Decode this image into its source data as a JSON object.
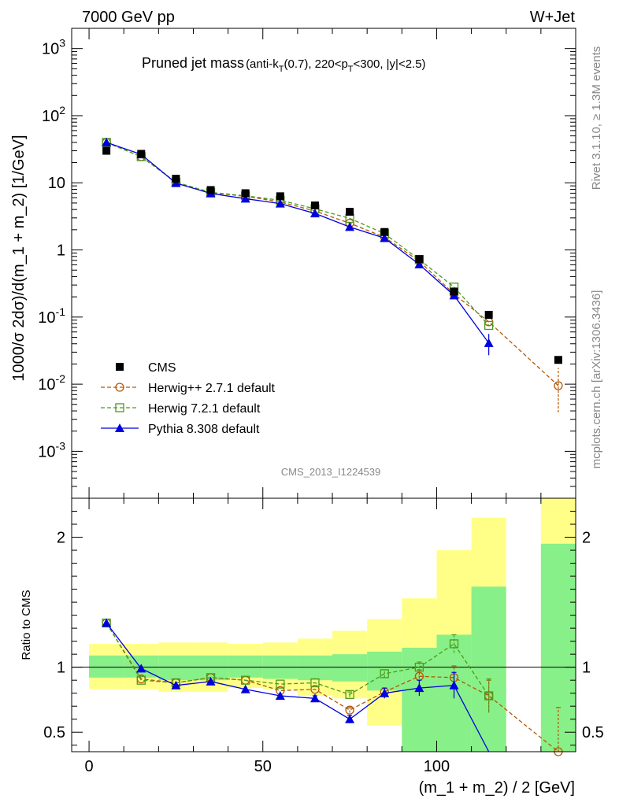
{
  "header": {
    "left": "7000 GeV pp",
    "right": "W+Jet"
  },
  "side_labels": {
    "rivet": "Rivet 3.1.10, ≥ 1.3M events",
    "mcplots": "mcplots.cern.ch [arXiv:1306.3436]"
  },
  "watermark": "CMS_2013_I1224539",
  "chart_data": [
    {
      "type": "scatter",
      "title_main": "Pruned jet mass",
      "title_sub": "(anti-k_T(0.7), 220<p_T<300, |y|<2.5)",
      "ylabel": "1000/σ 2dσ)/d(m_1 + m_2) [1/GeV]",
      "yscale": "log",
      "ylim": [
        0.0002,
        2000
      ],
      "xlim": [
        -5,
        140
      ],
      "y_tick_labels": [
        "10^-3",
        "10^-2",
        "10^-1",
        "1",
        "10",
        "10^2",
        "10^3"
      ],
      "legend_position": "lower-left",
      "x": [
        5,
        15,
        25,
        35,
        45,
        55,
        65,
        75,
        85,
        95,
        105,
        115,
        135
      ],
      "series": [
        {
          "name": "CMS",
          "color": "#000000",
          "marker": "square",
          "values": [
            30,
            27,
            11.5,
            7.8,
            7.0,
            6.3,
            4.6,
            3.7,
            1.85,
            0.73,
            0.24,
            0.108,
            0.023
          ]
        },
        {
          "name": "Herwig++ 2.7.1 default",
          "color": "#b35806",
          "marker": "open-circle",
          "linestyle": "dashed",
          "values": [
            40,
            24.5,
            10.2,
            7.1,
            6.3,
            5.2,
            3.8,
            2.5,
            1.55,
            0.68,
            0.22,
            0.085,
            0.0095
          ]
        },
        {
          "name": "Herwig 7.2.1 default",
          "color": "#4d9a1e",
          "marker": "open-square",
          "linestyle": "dashed",
          "values": [
            40,
            24.5,
            10.2,
            7.2,
            6.4,
            5.5,
            4.1,
            2.95,
            1.75,
            0.72,
            0.28,
            0.075,
            null
          ]
        },
        {
          "name": "Pythia 8.308 default",
          "color": "#0000dd",
          "marker": "filled-triangle",
          "linestyle": "solid",
          "values": [
            40,
            26.5,
            9.9,
            6.95,
            5.8,
            4.9,
            3.5,
            2.2,
            1.5,
            0.61,
            0.21,
            0.041,
            null
          ]
        }
      ]
    },
    {
      "type": "scatter",
      "ylabel": "Ratio to CMS",
      "xlabel": "(m_1 + m_2) / 2 [GeV]",
      "ylim": [
        0.35,
        2.3
      ],
      "xlim": [
        -5,
        140
      ],
      "x_tick_labels": [
        "0",
        "50",
        "100"
      ],
      "y_tick_labels": [
        "0.5",
        "1",
        "2"
      ],
      "band_edges": [
        0,
        10,
        20,
        30,
        40,
        50,
        60,
        70,
        80,
        90,
        100,
        110,
        120,
        130,
        140
      ],
      "band_inner": [
        [
          0.92,
          1.09
        ],
        [
          0.92,
          1.09
        ],
        [
          0.9,
          1.09
        ],
        [
          0.9,
          1.09
        ],
        [
          0.92,
          1.09
        ],
        [
          0.91,
          1.09
        ],
        [
          0.9,
          1.09
        ],
        [
          0.89,
          1.1
        ],
        [
          0.82,
          1.12
        ],
        [
          0.35,
          1.15
        ],
        [
          0.35,
          1.25
        ],
        [
          0.35,
          1.62
        ],
        null,
        [
          0.35,
          1.95
        ]
      ],
      "band_outer": [
        [
          0.83,
          1.18
        ],
        [
          0.83,
          1.18
        ],
        [
          0.81,
          1.19
        ],
        [
          0.81,
          1.19
        ],
        [
          0.84,
          1.18
        ],
        [
          0.83,
          1.19
        ],
        [
          0.78,
          1.22
        ],
        [
          0.76,
          1.28
        ],
        [
          0.55,
          1.37
        ],
        [
          0.35,
          1.53
        ],
        [
          0.35,
          1.9
        ],
        [
          0.35,
          2.15
        ],
        null,
        [
          0.35,
          2.3
        ]
      ],
      "series": [
        {
          "name": "Herwig++ 2.7.1 default",
          "color": "#b35806",
          "marker": "open-circle",
          "linestyle": "dashed",
          "x": [
            5,
            15,
            25,
            35,
            45,
            55,
            65,
            75,
            85,
            95,
            105,
            115,
            135
          ],
          "values": [
            1.34,
            0.91,
            0.88,
            0.92,
            0.9,
            0.82,
            0.83,
            0.67,
            0.81,
            0.93,
            0.92,
            0.78,
            0.35
          ],
          "errors": [
            0,
            0,
            0,
            0,
            0,
            0,
            0,
            0.02,
            0.03,
            0.05,
            0.09,
            0.12,
            0.34
          ]
        },
        {
          "name": "Herwig 7.2.1 default",
          "color": "#4d9a1e",
          "marker": "open-square",
          "linestyle": "dashed",
          "x": [
            5,
            15,
            25,
            35,
            45,
            55,
            65,
            75,
            85,
            95,
            105,
            115
          ],
          "values": [
            1.34,
            0.9,
            0.88,
            0.92,
            0.9,
            0.87,
            0.88,
            0.79,
            0.95,
            1.0,
            1.18,
            0.78
          ],
          "errors": [
            0,
            0,
            0,
            0,
            0,
            0,
            0,
            0.02,
            0.03,
            0.04,
            0.07,
            0.13
          ]
        },
        {
          "name": "Pythia 8.308 default",
          "color": "#0000dd",
          "marker": "filled-triangle",
          "linestyle": "solid",
          "x": [
            5,
            15,
            25,
            35,
            45,
            55,
            65,
            75,
            85,
            95,
            105,
            115
          ],
          "values": [
            1.34,
            0.99,
            0.86,
            0.89,
            0.83,
            0.78,
            0.76,
            0.6,
            0.8,
            0.84,
            0.86,
            0.3
          ],
          "errors": [
            0,
            0,
            0,
            0,
            0,
            0,
            0.02,
            0.03,
            0.04,
            0.06,
            0.1,
            0
          ]
        }
      ]
    }
  ]
}
